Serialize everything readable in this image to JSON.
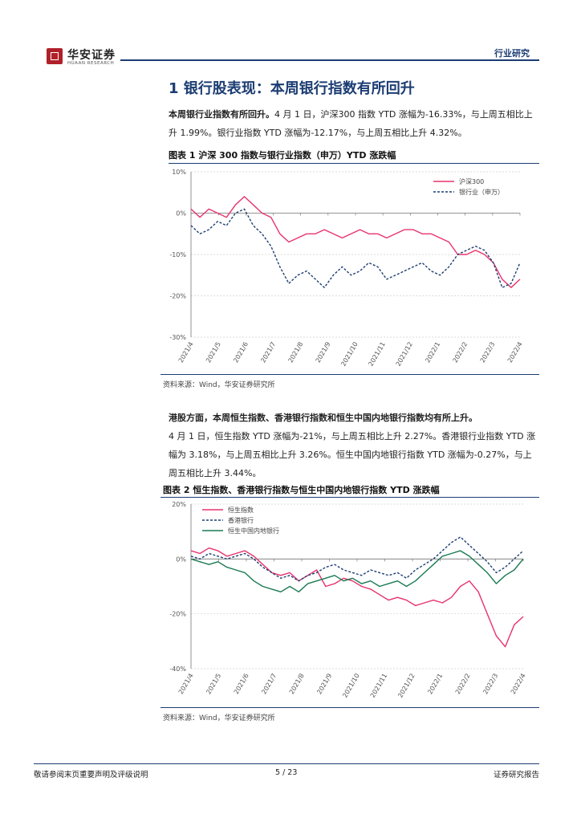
{
  "header": {
    "logo_cn": "华安证券",
    "logo_en": "HUAAN RESEARCH",
    "tag": "行业研究"
  },
  "section": {
    "title": "1 银行股表现：本周银行指数有所回升",
    "para1_bold": "本周银行业指数有所回升。",
    "para1_text": "4 月 1 日，沪深300 指数 YTD 涨幅为-16.33%，与上周五相比上升 1.99%。银行业指数 YTD 涨幅为-12.17%，与上周五相比上升 4.32%。",
    "para2_bold": "港股方面，本周恒生指数、香港银行指数和恒生中国内地银行指数均有所上升。",
    "para2_text": "4 月 1 日，恒生指数 YTD 涨幅为-21%，与上周五相比上升 2.27%。香港银行业指数 YTD 涨幅为 3.18%，与上周五相比上升 3.26%。恒生中国内地银行指数 YTD 涨幅为-0.27%，与上周五相比上升 3.44%。"
  },
  "figure1": {
    "title": "图表 1 沪深 300 指数与银行业指数（申万）YTD 涨跌幅",
    "source": "资料来源：Wind，华安证券研究所"
  },
  "figure2": {
    "title": "图表 2 恒生指数、香港银行指数与恒生中国内地银行指数 YTD 涨跌幅",
    "source": "资料来源：Wind，华安证券研究所"
  },
  "footer": {
    "left": "敬请参阅末页重要声明及评级说明",
    "page": "5 / 23",
    "right": "证券研究报告"
  },
  "colors": {
    "red": "#e8336d",
    "navy": "#1f3f73",
    "green": "#1a7a52"
  },
  "chart_data": [
    {
      "type": "line",
      "x_tick_labels": [
        "2021/4",
        "2021/5",
        "2021/6",
        "2021/7",
        "2021/8",
        "2021/9",
        "2021/10",
        "2021/11",
        "2021/12",
        "2022/1",
        "2022/2",
        "2022/3",
        "2022/4"
      ],
      "y_tick_labels": [
        "10%",
        "0%",
        "-10%",
        "-20%",
        "-30%"
      ],
      "ylim": [
        -30,
        10
      ],
      "legend": "top-right",
      "series": [
        {
          "name": "沪深300",
          "color": "#e8336d",
          "dash": "",
          "values": [
            1,
            -1,
            1,
            0,
            -1,
            2,
            4,
            2,
            0,
            -1,
            -5,
            -7,
            -6,
            -5,
            -5,
            -4,
            -5,
            -6,
            -5,
            -4,
            -5,
            -5,
            -6,
            -5,
            -4,
            -4,
            -5,
            -5,
            -6,
            -7,
            -10,
            -10,
            -9,
            -10,
            -12,
            -16,
            -18,
            -16
          ]
        },
        {
          "name": "银行业（申万）",
          "color": "#1f3f73",
          "dash": "3,2",
          "values": [
            -3,
            -5,
            -4,
            -2,
            -3,
            0,
            1,
            -3,
            -5,
            -8,
            -13,
            -17,
            -15,
            -14,
            -16,
            -18,
            -15,
            -13,
            -15,
            -14,
            -12,
            -13,
            -16,
            -15,
            -14,
            -13,
            -12,
            -14,
            -15,
            -13,
            -10,
            -9,
            -8,
            -9,
            -12,
            -18,
            -17,
            -12
          ]
        }
      ]
    },
    {
      "type": "line",
      "x_tick_labels": [
        "2021/4",
        "2021/5",
        "2021/6",
        "2021/7",
        "2021/8",
        "2021/9",
        "2021/10",
        "2021/11",
        "2021/12",
        "2022/1",
        "2022/2",
        "2022/3",
        "2022/4"
      ],
      "y_tick_labels": [
        "20%",
        "0%",
        "-20%",
        "-40%"
      ],
      "ylim": [
        -40,
        20
      ],
      "legend": "top-left",
      "series": [
        {
          "name": "恒生指数",
          "color": "#e8336d",
          "dash": "",
          "values": [
            3,
            2,
            4,
            3,
            1,
            2,
            3,
            1,
            -2,
            -5,
            -6,
            -5,
            -8,
            -6,
            -4,
            -10,
            -9,
            -7,
            -8,
            -10,
            -11,
            -13,
            -15,
            -14,
            -15,
            -17,
            -16,
            -15,
            -16,
            -14,
            -10,
            -8,
            -12,
            -20,
            -28,
            -32,
            -24,
            -21
          ]
        },
        {
          "name": "香港银行",
          "color": "#1f3f73",
          "dash": "3,2",
          "values": [
            1,
            0,
            2,
            1,
            0,
            1,
            2,
            0,
            -3,
            -5,
            -7,
            -6,
            -8,
            -6,
            -5,
            -3,
            -2,
            -4,
            -5,
            -6,
            -4,
            -5,
            -6,
            -5,
            -7,
            -4,
            -2,
            0,
            3,
            6,
            8,
            5,
            2,
            -1,
            -5,
            -3,
            0,
            3
          ]
        },
        {
          "name": "恒生中国内地银行",
          "color": "#1a7a52",
          "dash": "",
          "values": [
            0,
            -1,
            -2,
            -1,
            -3,
            -4,
            -5,
            -8,
            -10,
            -11,
            -12,
            -10,
            -12,
            -9,
            -8,
            -7,
            -6,
            -8,
            -7,
            -9,
            -8,
            -10,
            -9,
            -8,
            -10,
            -8,
            -5,
            -2,
            1,
            2,
            3,
            1,
            -2,
            -5,
            -9,
            -6,
            -4,
            0
          ]
        }
      ]
    }
  ]
}
